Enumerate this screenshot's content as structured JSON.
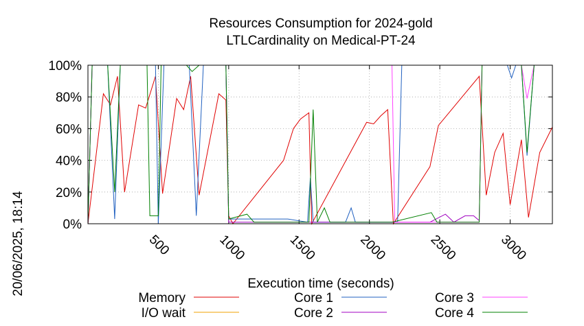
{
  "chart_data": {
    "type": "line",
    "title": "Resources Consumption for 2024-gold",
    "subtitle": "LTLCardinality on Medical-PT-24",
    "xlabel": "Execution time (seconds)",
    "ylabel": "",
    "side_label": "20/06/2025, 18:14",
    "xlim": [
      0,
      3300
    ],
    "ylim": [
      0,
      100
    ],
    "x_ticks": [
      500,
      1000,
      1500,
      2000,
      2500,
      3000
    ],
    "y_ticks": [
      0,
      20,
      40,
      60,
      80,
      100
    ],
    "y_tick_labels": [
      "0%",
      "20%",
      "40%",
      "60%",
      "80%",
      "100%"
    ],
    "grid": true,
    "legend_position": "bottom",
    "series": [
      {
        "name": "Memory",
        "color": "#e00000",
        "points": [
          [
            0,
            0
          ],
          [
            110,
            82
          ],
          [
            160,
            75
          ],
          [
            210,
            93
          ],
          [
            260,
            20
          ],
          [
            360,
            75
          ],
          [
            410,
            73
          ],
          [
            480,
            93
          ],
          [
            530,
            19
          ],
          [
            630,
            79
          ],
          [
            680,
            72
          ],
          [
            730,
            93
          ],
          [
            790,
            18
          ],
          [
            930,
            82
          ],
          [
            980,
            78
          ],
          [
            1000,
            5
          ],
          [
            1030,
            0
          ],
          [
            1390,
            40
          ],
          [
            1460,
            60
          ],
          [
            1510,
            66
          ],
          [
            1570,
            70
          ],
          [
            1590,
            0
          ],
          [
            1980,
            64
          ],
          [
            2030,
            63
          ],
          [
            2080,
            68
          ],
          [
            2130,
            72
          ],
          [
            2170,
            0
          ],
          [
            2430,
            36
          ],
          [
            2490,
            62
          ],
          [
            2780,
            93
          ],
          [
            2830,
            18
          ],
          [
            2890,
            45
          ],
          [
            2950,
            57
          ],
          [
            3000,
            12
          ],
          [
            3080,
            53
          ],
          [
            3130,
            4
          ],
          [
            3210,
            45
          ],
          [
            3300,
            61
          ]
        ]
      },
      {
        "name": "I/O wait",
        "color": "#f0a000",
        "points": [
          [
            0,
            0
          ],
          [
            3300,
            0
          ]
        ]
      },
      {
        "name": "Core 1",
        "color": "#2060c0",
        "points": [
          [
            0,
            0
          ],
          [
            30,
            100
          ],
          [
            140,
            100
          ],
          [
            190,
            3
          ],
          [
            230,
            100
          ],
          [
            480,
            100
          ],
          [
            500,
            0
          ],
          [
            540,
            100
          ],
          [
            720,
            100
          ],
          [
            770,
            5
          ],
          [
            820,
            100
          ],
          [
            980,
            100
          ],
          [
            1000,
            3
          ],
          [
            1420,
            3
          ],
          [
            1560,
            1
          ],
          [
            1580,
            29
          ],
          [
            1600,
            1
          ],
          [
            1830,
            1
          ],
          [
            1870,
            10
          ],
          [
            1900,
            1
          ],
          [
            2200,
            1
          ],
          [
            2230,
            100
          ],
          [
            2980,
            100
          ],
          [
            3010,
            92
          ],
          [
            3040,
            100
          ],
          [
            3080,
            100
          ],
          [
            3120,
            43
          ],
          [
            3170,
            100
          ],
          [
            3300,
            100
          ]
        ]
      },
      {
        "name": "Core 2",
        "color": "#a000c0",
        "points": [
          [
            0,
            0
          ],
          [
            30,
            100
          ],
          [
            980,
            100
          ],
          [
            1000,
            1
          ],
          [
            2160,
            1
          ],
          [
            2430,
            1
          ],
          [
            2540,
            6
          ],
          [
            2600,
            1
          ],
          [
            2680,
            5
          ],
          [
            2740,
            5
          ],
          [
            2780,
            2
          ],
          [
            2800,
            100
          ],
          [
            3300,
            100
          ]
        ]
      },
      {
        "name": "Core 3",
        "color": "#ff40ff",
        "points": [
          [
            0,
            0
          ],
          [
            30,
            100
          ],
          [
            1600,
            100
          ],
          [
            1650,
            100
          ],
          [
            2100,
            100
          ],
          [
            2160,
            100
          ],
          [
            2180,
            1
          ],
          [
            2780,
            1
          ],
          [
            2800,
            100
          ],
          [
            3080,
            100
          ],
          [
            3120,
            79
          ],
          [
            3170,
            100
          ],
          [
            3300,
            100
          ]
        ]
      },
      {
        "name": "Core 4",
        "color": "#008000",
        "points": [
          [
            0,
            0
          ],
          [
            30,
            100
          ],
          [
            140,
            100
          ],
          [
            190,
            20
          ],
          [
            230,
            100
          ],
          [
            420,
            100
          ],
          [
            440,
            5
          ],
          [
            500,
            5
          ],
          [
            520,
            100
          ],
          [
            700,
            100
          ],
          [
            740,
            96
          ],
          [
            790,
            100
          ],
          [
            980,
            100
          ],
          [
            1000,
            3
          ],
          [
            1130,
            6
          ],
          [
            1180,
            1
          ],
          [
            1570,
            1
          ],
          [
            1600,
            72
          ],
          [
            1630,
            1
          ],
          [
            1680,
            10
          ],
          [
            1720,
            1
          ],
          [
            2160,
            1
          ],
          [
            2440,
            7
          ],
          [
            2480,
            1
          ],
          [
            2780,
            1
          ],
          [
            2800,
            100
          ],
          [
            3080,
            100
          ],
          [
            3120,
            45
          ],
          [
            3170,
            100
          ],
          [
            3300,
            100
          ]
        ]
      }
    ]
  }
}
